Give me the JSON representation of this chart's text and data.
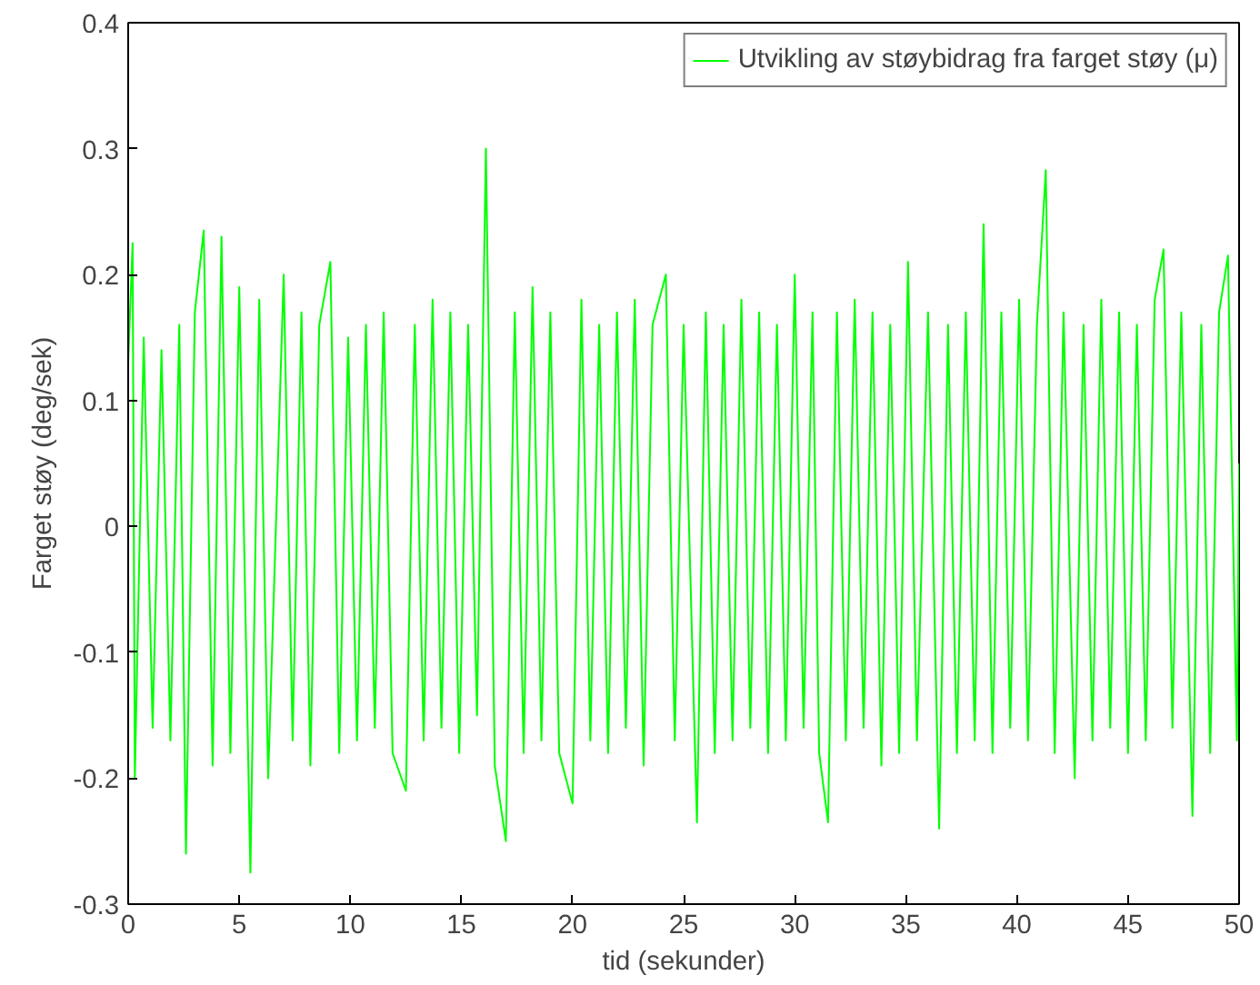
{
  "chart_data": {
    "type": "line",
    "xlabel": "tid (sekunder)",
    "ylabel": "Farget støy (deg/sek)",
    "x": [
      0,
      0.2,
      0.3,
      0.7,
      1.1,
      1.5,
      1.9,
      2.3,
      2.6,
      3.0,
      3.4,
      3.8,
      4.2,
      4.6,
      5.0,
      5.5,
      5.9,
      6.3,
      7.0,
      7.4,
      7.8,
      8.2,
      8.6,
      9.1,
      9.5,
      9.9,
      10.3,
      10.7,
      11.1,
      11.5,
      11.9,
      12.5,
      12.9,
      13.3,
      13.7,
      14.1,
      14.5,
      14.9,
      15.3,
      15.7,
      16.1,
      16.5,
      17.0,
      17.4,
      17.8,
      18.2,
      18.6,
      19.0,
      19.4,
      20.0,
      20.4,
      20.8,
      21.2,
      21.6,
      22.0,
      22.4,
      22.8,
      23.2,
      23.6,
      24.2,
      24.6,
      25.0,
      25.6,
      26.0,
      26.4,
      26.8,
      27.2,
      27.6,
      28.0,
      28.4,
      28.8,
      29.2,
      29.6,
      30.0,
      30.4,
      30.8,
      31.1,
      31.5,
      31.9,
      32.3,
      32.7,
      33.1,
      33.5,
      33.9,
      34.3,
      34.7,
      35.1,
      35.5,
      36.0,
      36.5,
      36.9,
      37.3,
      37.7,
      38.1,
      38.5,
      38.9,
      39.3,
      39.7,
      40.1,
      40.5,
      40.9,
      41.3,
      41.7,
      42.1,
      42.6,
      43.0,
      43.4,
      43.8,
      44.2,
      44.6,
      45.0,
      45.4,
      45.8,
      46.2,
      46.6,
      47.0,
      47.4,
      47.9,
      48.3,
      48.7,
      49.1,
      49.5,
      49.9,
      50.0
    ],
    "series": [
      {
        "name": "Utvikling av støybidrag fra farget støy (μ)",
        "color": "#00ff00",
        "values": [
          0.13,
          0.225,
          -0.2,
          0.15,
          -0.16,
          0.14,
          -0.17,
          0.16,
          -0.26,
          0.17,
          0.235,
          -0.19,
          0.23,
          -0.18,
          0.19,
          -0.275,
          0.18,
          -0.2,
          0.2,
          -0.17,
          0.17,
          -0.19,
          0.16,
          0.21,
          -0.18,
          0.15,
          -0.17,
          0.16,
          -0.16,
          0.17,
          -0.18,
          -0.21,
          0.16,
          -0.17,
          0.18,
          -0.16,
          0.17,
          -0.18,
          0.16,
          -0.15,
          0.3,
          -0.19,
          -0.25,
          0.17,
          -0.18,
          0.19,
          -0.17,
          0.17,
          -0.18,
          -0.22,
          0.18,
          -0.17,
          0.16,
          -0.18,
          0.17,
          -0.16,
          0.18,
          -0.19,
          0.16,
          0.2,
          -0.17,
          0.16,
          -0.235,
          0.17,
          -0.18,
          0.16,
          -0.17,
          0.18,
          -0.16,
          0.17,
          -0.18,
          0.16,
          -0.17,
          0.2,
          -0.16,
          0.17,
          -0.18,
          -0.235,
          0.17,
          -0.17,
          0.18,
          -0.16,
          0.17,
          -0.19,
          0.16,
          -0.18,
          0.21,
          -0.17,
          0.17,
          -0.24,
          0.16,
          -0.18,
          0.17,
          -0.17,
          0.24,
          -0.18,
          0.17,
          -0.16,
          0.18,
          -0.17,
          0.16,
          0.283,
          -0.18,
          0.17,
          -0.2,
          0.16,
          -0.17,
          0.18,
          -0.16,
          0.17,
          -0.18,
          0.16,
          -0.17,
          0.18,
          0.22,
          -0.16,
          0.17,
          -0.23,
          0.16,
          -0.18,
          0.17,
          0.215,
          -0.17,
          0.05
        ]
      }
    ],
    "xlim": [
      0,
      50
    ],
    "ylim": [
      -0.3,
      0.4
    ],
    "xticks": [
      0,
      5,
      10,
      15,
      20,
      25,
      30,
      35,
      40,
      45,
      50
    ],
    "yticks": [
      -0.3,
      -0.2,
      -0.1,
      0,
      0.1,
      0.2,
      0.3,
      0.4
    ],
    "grid": false,
    "legend": "top right",
    "line_style": "solid",
    "marker": "none"
  }
}
